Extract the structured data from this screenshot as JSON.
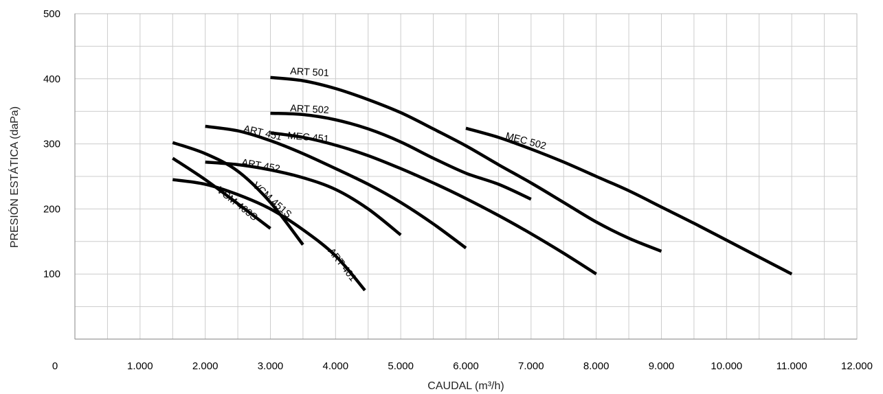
{
  "chart_data": {
    "type": "line",
    "xlabel": "CAUDAL (m³/h)",
    "ylabel": "PRESIÓN ESTÁTICA (daPa)",
    "xlim": [
      0,
      12000
    ],
    "ylim": [
      0,
      500
    ],
    "x_ticks": [
      "0",
      "1.000",
      "2.000",
      "3.000",
      "4.000",
      "5.000",
      "6.000",
      "7.000",
      "8.000",
      "9.000",
      "10.000",
      "11.000",
      "12.000"
    ],
    "x_tick_values": [
      0,
      1000,
      2000,
      3000,
      4000,
      5000,
      6000,
      7000,
      8000,
      9000,
      10000,
      11000,
      12000
    ],
    "y_ticks": [
      "100",
      "200",
      "300",
      "400",
      "500"
    ],
    "y_tick_values": [
      100,
      200,
      300,
      400,
      500
    ],
    "grid": true,
    "grid_x_step": 500,
    "grid_y_step": 50,
    "line_color": "#000000",
    "grid_color": "#cccccc",
    "series": [
      {
        "name": "ART 501",
        "label_at": [
          3300,
          407
        ],
        "label_angle": 3,
        "points": [
          [
            3000,
            402
          ],
          [
            3500,
            397
          ],
          [
            4000,
            385
          ],
          [
            4500,
            368
          ],
          [
            5000,
            348
          ],
          [
            5500,
            323
          ],
          [
            6000,
            297
          ],
          [
            6500,
            268
          ],
          [
            7000,
            240
          ],
          [
            7500,
            210
          ],
          [
            8000,
            180
          ],
          [
            8500,
            155
          ],
          [
            9000,
            135
          ]
        ]
      },
      {
        "name": "ART 502",
        "label_at": [
          3300,
          350
        ],
        "label_angle": 3,
        "points": [
          [
            3000,
            347
          ],
          [
            3500,
            345
          ],
          [
            4000,
            337
          ],
          [
            4500,
            323
          ],
          [
            5000,
            303
          ],
          [
            5500,
            278
          ],
          [
            6000,
            255
          ],
          [
            6500,
            238
          ],
          [
            7000,
            215
          ]
        ]
      },
      {
        "name": "ART 451",
        "label_at": [
          2580,
          319
        ],
        "label_angle": 13,
        "points": [
          [
            2000,
            327
          ],
          [
            2500,
            320
          ],
          [
            3000,
            305
          ],
          [
            3500,
            285
          ],
          [
            4000,
            262
          ],
          [
            4500,
            238
          ],
          [
            5000,
            210
          ],
          [
            5500,
            177
          ],
          [
            6000,
            140
          ]
        ]
      },
      {
        "name": "MEC 451",
        "label_at": [
          3260,
          308
        ],
        "label_angle": 5,
        "points": [
          [
            3000,
            317
          ],
          [
            3500,
            310
          ],
          [
            4000,
            298
          ],
          [
            4500,
            282
          ],
          [
            5000,
            262
          ],
          [
            5500,
            240
          ],
          [
            6000,
            216
          ],
          [
            6500,
            190
          ],
          [
            7000,
            162
          ],
          [
            7500,
            132
          ],
          [
            8000,
            100
          ]
        ]
      },
      {
        "name": "MEC 502",
        "label_at": [
          6600,
          308
        ],
        "label_angle": 15,
        "points": [
          [
            6000,
            324
          ],
          [
            6500,
            310
          ],
          [
            7000,
            292
          ],
          [
            7500,
            272
          ],
          [
            8000,
            250
          ],
          [
            8500,
            228
          ],
          [
            9000,
            203
          ],
          [
            9500,
            178
          ],
          [
            10000,
            152
          ],
          [
            10500,
            126
          ],
          [
            11000,
            100
          ]
        ]
      },
      {
        "name": "ART 452",
        "label_at": [
          2550,
          267
        ],
        "label_angle": 10,
        "points": [
          [
            2000,
            272
          ],
          [
            2500,
            268
          ],
          [
            3000,
            260
          ],
          [
            3500,
            248
          ],
          [
            4000,
            230
          ],
          [
            4500,
            200
          ],
          [
            5000,
            160
          ]
        ]
      },
      {
        "name": "VCM 451S",
        "label_at": [
          2720,
          235
        ],
        "label_angle": 42,
        "points": [
          [
            1500,
            302
          ],
          [
            2000,
            285
          ],
          [
            2500,
            258
          ],
          [
            3000,
            210
          ],
          [
            3500,
            145
          ]
        ]
      },
      {
        "name": "VCM 403S",
        "label_at": [
          2170,
          227
        ],
        "label_angle": 38,
        "points": [
          [
            1500,
            278
          ],
          [
            2000,
            245
          ],
          [
            2500,
            208
          ],
          [
            3000,
            170
          ]
        ]
      },
      {
        "name": "ART 401",
        "label_at": [
          3880,
          135
        ],
        "label_angle": 52,
        "points": [
          [
            1500,
            245
          ],
          [
            2000,
            238
          ],
          [
            2500,
            222
          ],
          [
            3000,
            200
          ],
          [
            3500,
            168
          ],
          [
            4000,
            128
          ],
          [
            4450,
            75
          ]
        ]
      }
    ]
  }
}
